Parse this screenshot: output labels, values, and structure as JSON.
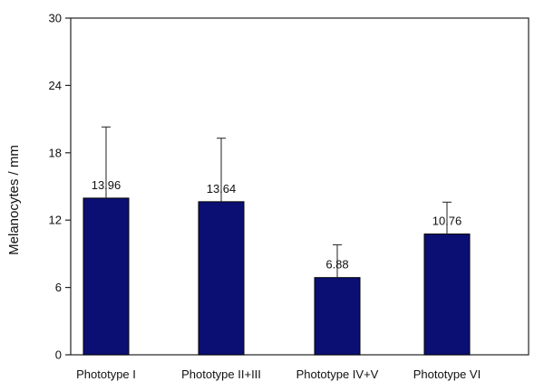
{
  "chart_data": {
    "type": "bar",
    "title": "",
    "xlabel": "",
    "ylabel": "Melanocytes / mm",
    "categories": [
      "Phototype I",
      "Phototype II+III",
      "Phototype IV+V",
      "Phototype VI"
    ],
    "values": [
      13.96,
      13.64,
      6.88,
      10.76
    ],
    "value_labels": [
      "13.96",
      "13.64",
      "6.88",
      "10.76"
    ],
    "error_upper": [
      20.3,
      19.3,
      9.8,
      13.6
    ],
    "ylim": [
      0,
      30
    ],
    "yticks": [
      0,
      6,
      12,
      18,
      24,
      30
    ],
    "ytick_labels": [
      "0",
      "6",
      "12",
      "18",
      "24",
      "30"
    ],
    "grid": false,
    "bar_color": "#0b0f73",
    "axis_color": "#222222"
  }
}
